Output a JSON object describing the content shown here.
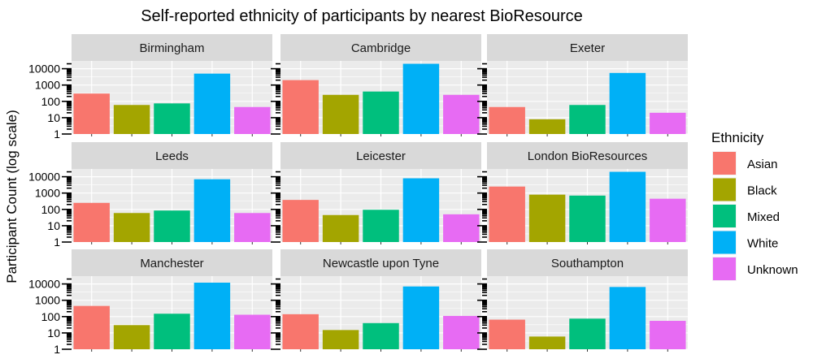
{
  "chart_data": {
    "type": "bar",
    "title": "Self-reported ethnicity of participants by nearest BioResource",
    "ylabel": "Participant Count (log scale)",
    "xlabel": "",
    "yscale": "log",
    "ylim": [
      1,
      30000
    ],
    "yticks": [
      1,
      10,
      100,
      1000,
      10000
    ],
    "ytick_labels": [
      "1",
      "10",
      "100",
      "1000",
      "10000"
    ],
    "grid": true,
    "legend": {
      "title": "Ethnicity",
      "placement": "right"
    },
    "categories": [
      "Asian",
      "Black",
      "Mixed",
      "White",
      "Unknown"
    ],
    "colors": {
      "Asian": "#F8766D",
      "Black": "#A3A500",
      "Mixed": "#00BF7D",
      "White": "#00B0F6",
      "Unknown": "#E76BF3"
    },
    "facets": [
      {
        "name": "Birmingham",
        "values": [
          300,
          60,
          75,
          5000,
          45
        ]
      },
      {
        "name": "Cambridge",
        "values": [
          2000,
          250,
          400,
          20000,
          250
        ]
      },
      {
        "name": "Exeter",
        "values": [
          45,
          8,
          60,
          5500,
          20
        ]
      },
      {
        "name": "Leeds",
        "values": [
          250,
          60,
          85,
          7000,
          60
        ]
      },
      {
        "name": "Leicester",
        "values": [
          380,
          45,
          95,
          8000,
          50
        ]
      },
      {
        "name": "London BioResources",
        "values": [
          2500,
          800,
          700,
          20000,
          450
        ]
      },
      {
        "name": "Manchester",
        "values": [
          450,
          30,
          150,
          12000,
          130
        ]
      },
      {
        "name": "Newcastle upon Tyne",
        "values": [
          140,
          15,
          40,
          7000,
          110
        ]
      },
      {
        "name": "Southampton",
        "values": [
          65,
          6,
          75,
          6500,
          55
        ]
      }
    ]
  }
}
